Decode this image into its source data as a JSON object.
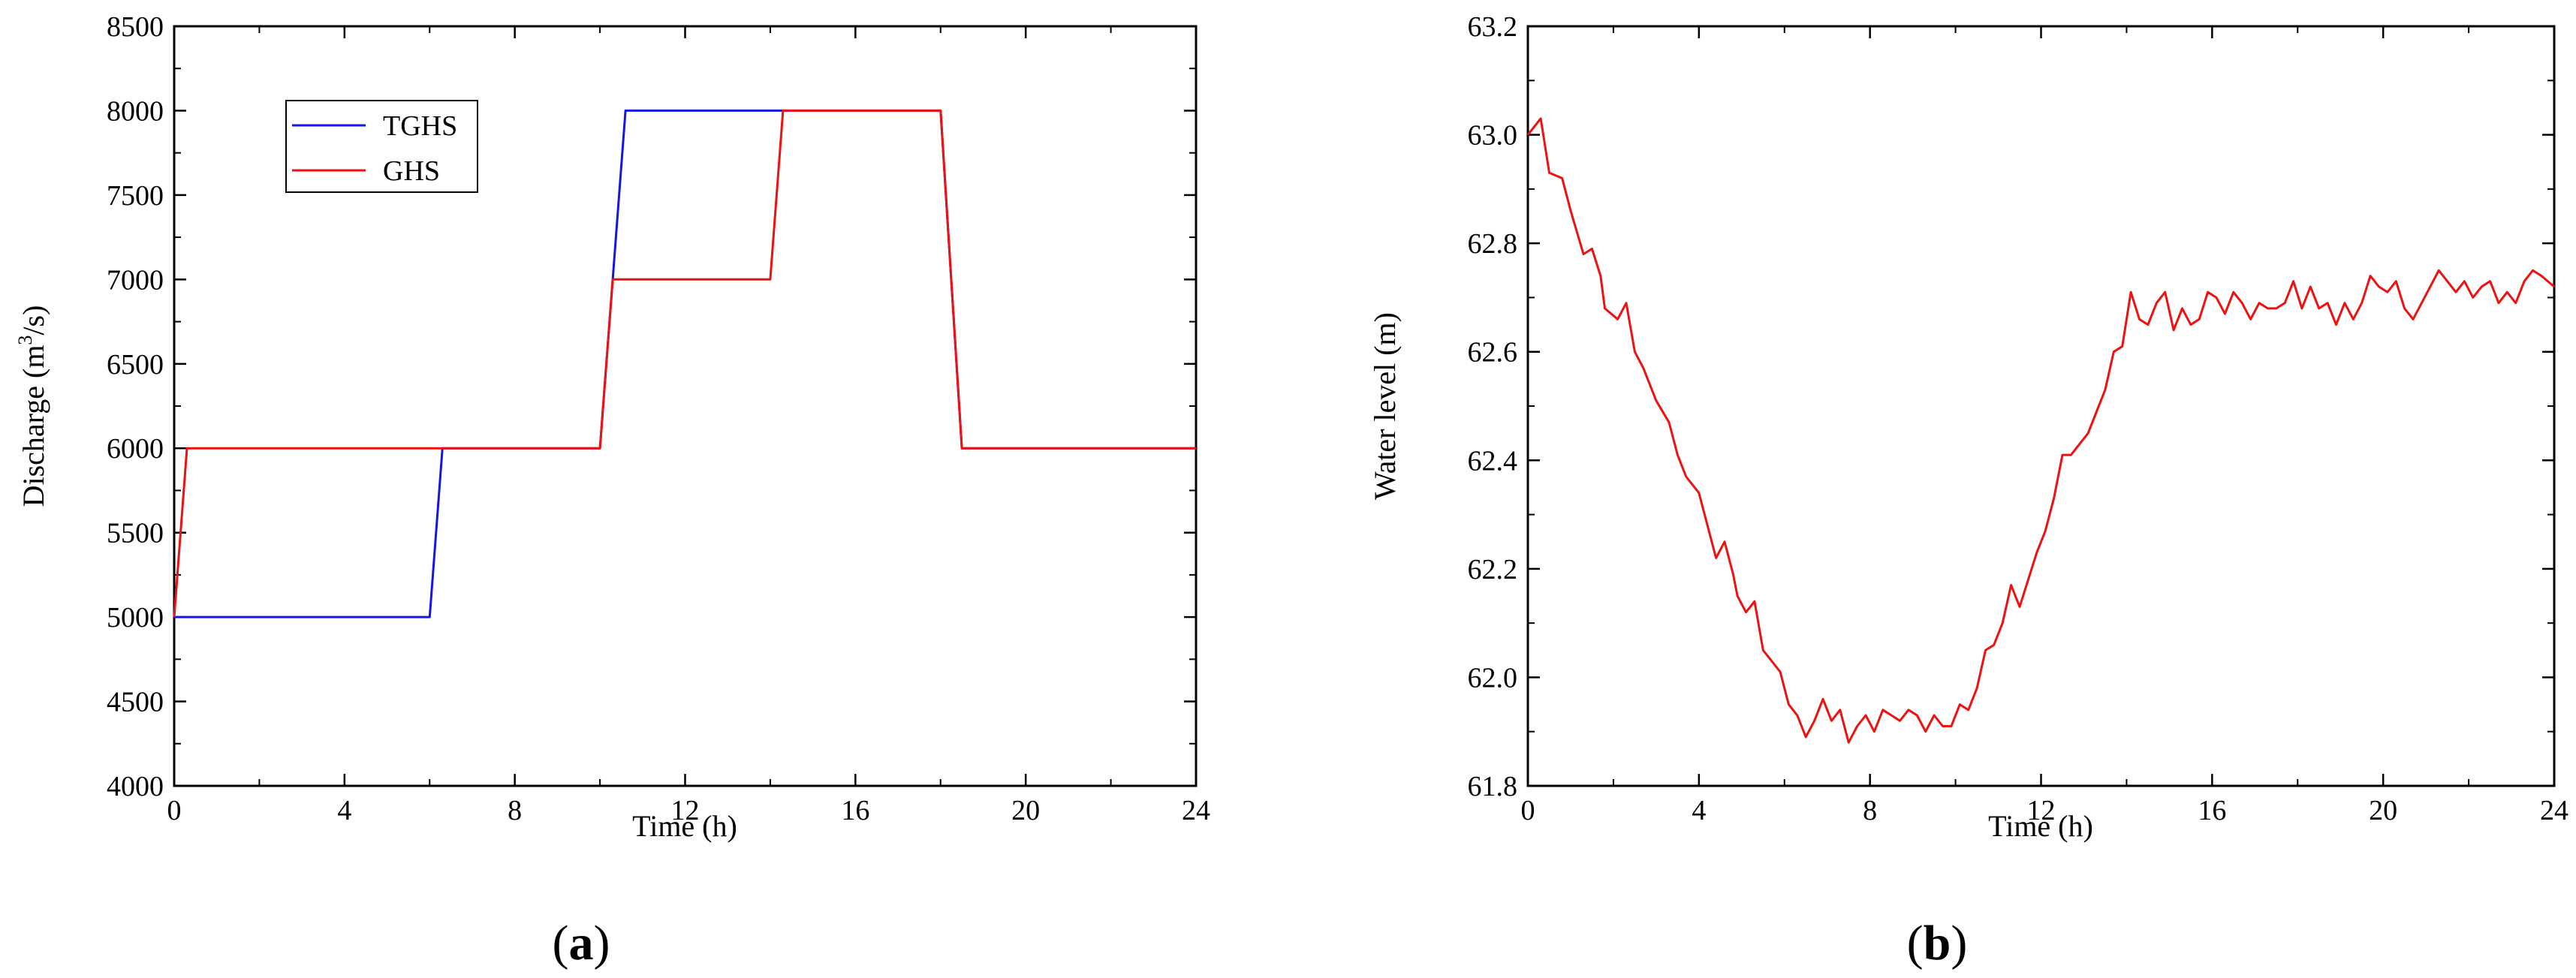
{
  "chart_data": [
    {
      "type": "line",
      "panel_label": "a",
      "xlabel": "Time (h)",
      "ylabel_parts": [
        "Discharge (m",
        "3",
        "/s)"
      ],
      "xlim": [
        0,
        24
      ],
      "ylim": [
        4000,
        8500
      ],
      "xticks": [
        0,
        4,
        8,
        12,
        16,
        20,
        24
      ],
      "yticks": [
        4000,
        4500,
        5000,
        5500,
        6000,
        6500,
        7000,
        7500,
        8000,
        8500
      ],
      "legend_placement": "upper-left",
      "series": [
        {
          "name": "TGHS",
          "color": "#1515e6",
          "points": [
            [
              0,
              5000
            ],
            [
              6,
              5000
            ],
            [
              6.3,
              6000
            ],
            [
              10,
              6000
            ],
            [
              10.6,
              8000
            ],
            [
              18,
              8000
            ],
            [
              18.5,
              6000
            ],
            [
              24,
              6000
            ]
          ]
        },
        {
          "name": "GHS",
          "color": "#ee1111",
          "points": [
            [
              0,
              5000
            ],
            [
              0.3,
              6000
            ],
            [
              10,
              6000
            ],
            [
              10.3,
              7000
            ],
            [
              14,
              7000
            ],
            [
              14.3,
              8000
            ],
            [
              18,
              8000
            ],
            [
              18.5,
              6000
            ],
            [
              24,
              6000
            ]
          ]
        }
      ]
    },
    {
      "type": "line",
      "panel_label": "b",
      "xlabel": "Time (h)",
      "ylabel": "Water level (m)",
      "xlim": [
        0,
        24
      ],
      "ylim": [
        61.8,
        63.2
      ],
      "xticks": [
        0,
        4,
        8,
        12,
        16,
        20,
        24
      ],
      "yticks": [
        "61.8",
        "62.0",
        "62.2",
        "62.4",
        "62.6",
        "62.8",
        "63.0",
        "63.2"
      ],
      "series": [
        {
          "color": "#ee1111",
          "points": [
            [
              0,
              63.0
            ],
            [
              0.3,
              63.03
            ],
            [
              0.5,
              62.93
            ],
            [
              0.8,
              62.92
            ],
            [
              1.0,
              62.86
            ],
            [
              1.3,
              62.78
            ],
            [
              1.5,
              62.79
            ],
            [
              1.7,
              62.74
            ],
            [
              1.8,
              62.68
            ],
            [
              2.1,
              62.66
            ],
            [
              2.3,
              62.69
            ],
            [
              2.5,
              62.6
            ],
            [
              2.7,
              62.57
            ],
            [
              3.0,
              62.51
            ],
            [
              3.3,
              62.47
            ],
            [
              3.5,
              62.41
            ],
            [
              3.7,
              62.37
            ],
            [
              4.0,
              62.34
            ],
            [
              4.2,
              62.28
            ],
            [
              4.4,
              62.22
            ],
            [
              4.6,
              62.25
            ],
            [
              4.8,
              62.19
            ],
            [
              4.9,
              62.15
            ],
            [
              5.1,
              62.12
            ],
            [
              5.3,
              62.14
            ],
            [
              5.5,
              62.05
            ],
            [
              5.7,
              62.03
            ],
            [
              5.9,
              62.01
            ],
            [
              6.1,
              61.95
            ],
            [
              6.3,
              61.93
            ],
            [
              6.5,
              61.89
            ],
            [
              6.7,
              61.92
            ],
            [
              6.9,
              61.96
            ],
            [
              7.1,
              61.92
            ],
            [
              7.3,
              61.94
            ],
            [
              7.5,
              61.88
            ],
            [
              7.7,
              61.91
            ],
            [
              7.9,
              61.93
            ],
            [
              8.1,
              61.9
            ],
            [
              8.3,
              61.94
            ],
            [
              8.5,
              61.93
            ],
            [
              8.7,
              61.92
            ],
            [
              8.9,
              61.94
            ],
            [
              9.1,
              61.93
            ],
            [
              9.3,
              61.9
            ],
            [
              9.5,
              61.93
            ],
            [
              9.7,
              61.91
            ],
            [
              9.9,
              61.91
            ],
            [
              10.1,
              61.95
            ],
            [
              10.3,
              61.94
            ],
            [
              10.5,
              61.98
            ],
            [
              10.7,
              62.05
            ],
            [
              10.9,
              62.06
            ],
            [
              11.1,
              62.1
            ],
            [
              11.3,
              62.17
            ],
            [
              11.5,
              62.13
            ],
            [
              11.7,
              62.18
            ],
            [
              11.9,
              62.23
            ],
            [
              12.1,
              62.27
            ],
            [
              12.3,
              62.33
            ],
            [
              12.5,
              62.41
            ],
            [
              12.7,
              62.41
            ],
            [
              12.9,
              62.43
            ],
            [
              13.1,
              62.45
            ],
            [
              13.3,
              62.49
            ],
            [
              13.5,
              62.53
            ],
            [
              13.7,
              62.6
            ],
            [
              13.9,
              62.61
            ],
            [
              14.1,
              62.71
            ],
            [
              14.3,
              62.66
            ],
            [
              14.5,
              62.65
            ],
            [
              14.7,
              62.69
            ],
            [
              14.9,
              62.71
            ],
            [
              15.1,
              62.64
            ],
            [
              15.3,
              62.68
            ],
            [
              15.5,
              62.65
            ],
            [
              15.7,
              62.66
            ],
            [
              15.9,
              62.71
            ],
            [
              16.1,
              62.7
            ],
            [
              16.3,
              62.67
            ],
            [
              16.5,
              62.71
            ],
            [
              16.7,
              62.69
            ],
            [
              16.9,
              62.66
            ],
            [
              17.1,
              62.69
            ],
            [
              17.3,
              62.68
            ],
            [
              17.5,
              62.68
            ],
            [
              17.7,
              62.69
            ],
            [
              17.9,
              62.73
            ],
            [
              18.1,
              62.68
            ],
            [
              18.3,
              62.72
            ],
            [
              18.5,
              62.68
            ],
            [
              18.7,
              62.69
            ],
            [
              18.9,
              62.65
            ],
            [
              19.1,
              62.69
            ],
            [
              19.3,
              62.66
            ],
            [
              19.5,
              62.69
            ],
            [
              19.7,
              62.74
            ],
            [
              19.9,
              62.72
            ],
            [
              20.1,
              62.71
            ],
            [
              20.3,
              62.73
            ],
            [
              20.5,
              62.68
            ],
            [
              20.7,
              62.66
            ],
            [
              20.9,
              62.69
            ],
            [
              21.1,
              62.72
            ],
            [
              21.3,
              62.75
            ],
            [
              21.5,
              62.73
            ],
            [
              21.7,
              62.71
            ],
            [
              21.9,
              62.73
            ],
            [
              22.1,
              62.7
            ],
            [
              22.3,
              62.72
            ],
            [
              22.5,
              62.73
            ],
            [
              22.7,
              62.69
            ],
            [
              22.9,
              62.71
            ],
            [
              23.1,
              62.69
            ],
            [
              23.3,
              62.73
            ],
            [
              23.5,
              62.75
            ],
            [
              23.7,
              62.74
            ],
            [
              24.0,
              62.72
            ]
          ]
        }
      ]
    }
  ]
}
